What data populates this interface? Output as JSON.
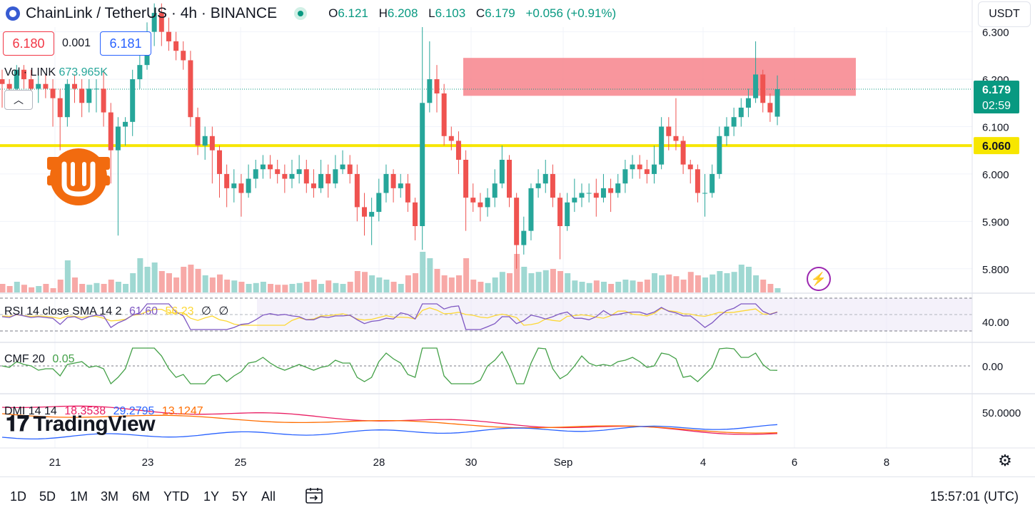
{
  "header": {
    "symbol": "ChainLink / TetherUS · 4h · BINANCE",
    "ohlc": [
      {
        "k": "O",
        "v": "6.121"
      },
      {
        "k": "H",
        "v": "6.208"
      },
      {
        "k": "L",
        "v": "6.103"
      },
      {
        "k": "C",
        "v": "6.179"
      },
      {
        "k": "",
        "v": "+0.056 (+0.91%)"
      }
    ],
    "sell_price": "6.180",
    "spread": "0.001",
    "buy_price": "6.181",
    "currency_button": "USDT"
  },
  "volume_legend": {
    "label": "Vol · LINK",
    "value": "673.965K"
  },
  "indicators": {
    "rsi": {
      "label": "RSI 14 close SMA 14 2",
      "v1": "61.60",
      "v2": "56.23",
      "v3": "∅",
      "v4": "∅",
      "axis": "40.00"
    },
    "cmf": {
      "label": "CMF 20",
      "value": "0.05",
      "axis": "0.00"
    },
    "dmi": {
      "label": "DMI 14 14",
      "v1": "18.3538",
      "v2": "29.2795",
      "v3": "13.1247",
      "axis": "50.0000"
    }
  },
  "branding": {
    "logo_text": "TradingView"
  },
  "timeframes": [
    "1D",
    "5D",
    "1M",
    "3M",
    "6M",
    "YTD",
    "1Y",
    "5Y",
    "All"
  ],
  "clock": "15:57:01 (UTC)",
  "colors": {
    "up": "#26a69a",
    "down": "#ef5350",
    "level": "#f7e600",
    "zone": "#f7848c",
    "rsi": "#7e57c2",
    "rsi_ma": "#fdd835",
    "cmf": "#43a047",
    "dmi_plus": "#2962ff",
    "dmi_minus": "#e91e63",
    "adx": "#ff6d00"
  },
  "icons": {
    "collapse": "chevron-up-icon",
    "bolt": "lightning-icon",
    "gear": "gear-icon",
    "calendar": "calendar-range-icon",
    "badge": "bitcoin-badge-icon"
  },
  "chart_data": {
    "type": "candlestick",
    "title": "ChainLink / TetherUS · 4h · BINANCE",
    "y_ticks": [
      "6.300",
      "6.200",
      "6.100",
      "6.000",
      "5.900",
      "5.800"
    ],
    "ylim": [
      5.75,
      6.31
    ],
    "x_ticks": [
      "21",
      "23",
      "25",
      "28",
      "30",
      "Sep",
      "4",
      "6",
      "8"
    ],
    "last_price": "6.179",
    "countdown": "02:59",
    "horizontal_level": {
      "value": 6.06,
      "label": "6.060"
    },
    "resistance_zone": {
      "low": 6.165,
      "high": 6.245
    },
    "grid": true,
    "candles": [
      [
        6.2,
        6.19,
        6.22,
        6.14
      ],
      [
        6.19,
        6.18,
        6.2,
        6.14
      ],
      [
        6.18,
        6.22,
        6.23,
        6.17
      ],
      [
        6.22,
        6.2,
        6.23,
        6.18
      ],
      [
        6.2,
        6.18,
        6.22,
        6.15
      ],
      [
        6.18,
        6.19,
        6.21,
        6.15
      ],
      [
        6.19,
        6.18,
        6.21,
        6.16
      ],
      [
        6.18,
        6.16,
        6.2,
        6.1
      ],
      [
        6.16,
        6.12,
        6.18,
        6.05
      ],
      [
        6.12,
        6.19,
        6.2,
        6.1
      ],
      [
        6.19,
        6.18,
        6.21,
        6.15
      ],
      [
        6.18,
        6.15,
        6.2,
        6.12
      ],
      [
        6.15,
        6.18,
        6.2,
        6.13
      ],
      [
        6.18,
        6.18,
        6.2,
        6.13
      ],
      [
        6.18,
        6.13,
        6.22,
        6.1
      ],
      [
        6.13,
        6.05,
        6.15,
        5.98
      ],
      [
        6.05,
        6.1,
        6.12,
        5.87
      ],
      [
        6.1,
        6.11,
        6.12,
        6.06
      ],
      [
        6.11,
        6.2,
        6.22,
        6.08
      ],
      [
        6.2,
        6.23,
        6.25,
        6.18
      ],
      [
        6.23,
        6.3,
        6.32,
        6.22
      ],
      [
        6.3,
        6.34,
        6.36,
        6.27
      ],
      [
        6.34,
        6.3,
        6.36,
        6.27
      ],
      [
        6.3,
        6.28,
        6.33,
        6.26
      ],
      [
        6.28,
        6.26,
        6.3,
        6.24
      ],
      [
        6.26,
        6.24,
        6.28,
        6.22
      ],
      [
        6.24,
        6.12,
        6.26,
        6.1
      ],
      [
        6.12,
        6.06,
        6.14,
        6.04
      ],
      [
        6.06,
        6.08,
        6.1,
        6.03
      ],
      [
        6.08,
        6.05,
        6.1,
        5.98
      ],
      [
        6.05,
        6.0,
        6.06,
        5.95
      ],
      [
        6.0,
        5.97,
        6.02,
        5.93
      ],
      [
        5.97,
        5.98,
        6.01,
        5.94
      ],
      [
        5.98,
        5.96,
        6.0,
        5.91
      ],
      [
        5.96,
        5.99,
        6.02,
        5.95
      ],
      [
        5.99,
        6.01,
        6.03,
        5.97
      ],
      [
        6.01,
        6.02,
        6.04,
        5.99
      ],
      [
        6.02,
        6.01,
        6.04,
        5.99
      ],
      [
        6.01,
        6.0,
        6.03,
        5.98
      ],
      [
        6.0,
        5.99,
        6.02,
        5.96
      ],
      [
        5.99,
        6.0,
        6.03,
        5.97
      ],
      [
        6.0,
        6.01,
        6.04,
        5.98
      ],
      [
        6.01,
        5.98,
        6.03,
        5.96
      ],
      [
        5.98,
        5.97,
        6.01,
        5.95
      ],
      [
        5.97,
        6.0,
        6.03,
        5.96
      ],
      [
        6.0,
        5.98,
        6.02,
        5.95
      ],
      [
        5.98,
        6.01,
        6.04,
        5.97
      ],
      [
        6.01,
        6.02,
        6.05,
        6.0
      ],
      [
        6.02,
        6.0,
        6.04,
        5.98
      ],
      [
        6.0,
        5.93,
        6.02,
        5.9
      ],
      [
        5.93,
        5.91,
        5.96,
        5.87
      ],
      [
        5.91,
        5.92,
        5.95,
        5.85
      ],
      [
        5.92,
        5.96,
        5.99,
        5.9
      ],
      [
        5.96,
        6.0,
        6.02,
        5.94
      ],
      [
        6.0,
        5.97,
        6.01,
        5.94
      ],
      [
        5.97,
        5.98,
        6.0,
        5.95
      ],
      [
        5.98,
        5.94,
        6.0,
        5.92
      ],
      [
        5.94,
        5.89,
        5.95,
        5.86
      ],
      [
        5.89,
        6.15,
        6.31,
        5.84
      ],
      [
        6.15,
        6.2,
        6.28,
        6.13
      ],
      [
        6.2,
        6.17,
        6.23,
        6.13
      ],
      [
        6.17,
        6.08,
        6.19,
        6.06
      ],
      [
        6.08,
        6.07,
        6.1,
        6.05
      ],
      [
        6.07,
        6.03,
        6.09,
        6.0
      ],
      [
        6.03,
        5.95,
        6.05,
        5.88
      ],
      [
        5.95,
        5.94,
        5.98,
        5.92
      ],
      [
        5.94,
        5.93,
        5.96,
        5.9
      ],
      [
        5.93,
        5.95,
        5.97,
        5.91
      ],
      [
        5.95,
        5.98,
        6.01,
        5.93
      ],
      [
        5.98,
        6.03,
        6.06,
        5.97
      ],
      [
        6.03,
        5.95,
        6.04,
        5.93
      ],
      [
        5.95,
        5.85,
        5.96,
        5.8
      ],
      [
        5.85,
        5.88,
        5.91,
        5.83
      ],
      [
        5.88,
        5.97,
        5.98,
        5.86
      ],
      [
        5.97,
        5.98,
        6.01,
        5.95
      ],
      [
        5.98,
        6.0,
        6.03,
        5.96
      ],
      [
        6.0,
        5.95,
        6.02,
        5.93
      ],
      [
        5.95,
        5.89,
        5.96,
        5.82
      ],
      [
        5.89,
        5.94,
        5.96,
        5.88
      ],
      [
        5.94,
        5.95,
        5.99,
        5.92
      ],
      [
        5.95,
        5.96,
        5.98,
        5.93
      ],
      [
        5.96,
        5.96,
        5.98,
        5.94
      ],
      [
        5.96,
        5.95,
        5.99,
        5.91
      ],
      [
        5.95,
        5.97,
        6.0,
        5.94
      ],
      [
        5.97,
        5.96,
        5.99,
        5.92
      ],
      [
        5.96,
        5.98,
        6.0,
        5.95
      ],
      [
        5.98,
        6.01,
        6.03,
        5.96
      ],
      [
        6.01,
        6.02,
        6.04,
        5.99
      ],
      [
        6.02,
        6.01,
        6.04,
        5.99
      ],
      [
        6.01,
        6.0,
        6.03,
        5.98
      ],
      [
        6.0,
        6.02,
        6.06,
        5.98
      ],
      [
        6.02,
        6.1,
        6.12,
        6.01
      ],
      [
        6.1,
        6.08,
        6.12,
        6.05
      ],
      [
        6.08,
        6.07,
        6.16,
        6.05
      ],
      [
        6.07,
        6.02,
        6.08,
        6.0
      ],
      [
        6.02,
        6.01,
        6.03,
        5.98
      ],
      [
        6.01,
        5.96,
        6.02,
        5.94
      ],
      [
        5.96,
        5.96,
        6.0,
        5.91
      ],
      [
        5.96,
        6.0,
        6.02,
        5.95
      ],
      [
        6.0,
        6.08,
        6.1,
        5.99
      ],
      [
        6.08,
        6.1,
        6.12,
        6.06
      ],
      [
        6.1,
        6.12,
        6.14,
        6.08
      ],
      [
        6.12,
        6.14,
        6.16,
        6.1
      ],
      [
        6.14,
        6.16,
        6.18,
        6.12
      ],
      [
        6.16,
        6.21,
        6.28,
        6.15
      ],
      [
        6.21,
        6.15,
        6.22,
        6.13
      ],
      [
        6.15,
        6.13,
        6.17,
        6.11
      ],
      [
        6.121,
        6.179,
        6.208,
        6.103
      ]
    ],
    "volume": [
      0.2,
      0.15,
      0.25,
      0.18,
      0.12,
      0.15,
      0.2,
      0.1,
      0.3,
      0.75,
      0.35,
      0.2,
      0.18,
      0.22,
      0.2,
      0.3,
      0.25,
      0.2,
      0.45,
      0.8,
      0.6,
      0.7,
      0.5,
      0.45,
      0.35,
      0.6,
      0.65,
      0.55,
      0.4,
      0.35,
      0.42,
      0.3,
      0.28,
      0.25,
      0.2,
      0.22,
      0.25,
      0.2,
      0.18,
      0.18,
      0.2,
      0.22,
      0.25,
      0.3,
      0.2,
      0.28,
      0.22,
      0.2,
      0.25,
      0.5,
      0.48,
      0.4,
      0.35,
      0.3,
      0.25,
      0.2,
      0.4,
      0.45,
      0.95,
      0.8,
      0.55,
      0.4,
      0.35,
      0.4,
      0.8,
      0.3,
      0.25,
      0.22,
      0.35,
      0.48,
      0.45,
      0.9,
      0.6,
      0.45,
      0.48,
      0.52,
      0.55,
      0.5,
      0.45,
      0.28,
      0.25,
      0.22,
      0.28,
      0.25,
      0.2,
      0.25,
      0.3,
      0.28,
      0.25,
      0.3,
      0.45,
      0.4,
      0.42,
      0.38,
      0.3,
      0.48,
      0.4,
      0.35,
      0.42,
      0.5,
      0.45,
      0.48,
      0.65,
      0.6,
      0.4,
      0.3,
      0.2,
      0.1
    ]
  }
}
